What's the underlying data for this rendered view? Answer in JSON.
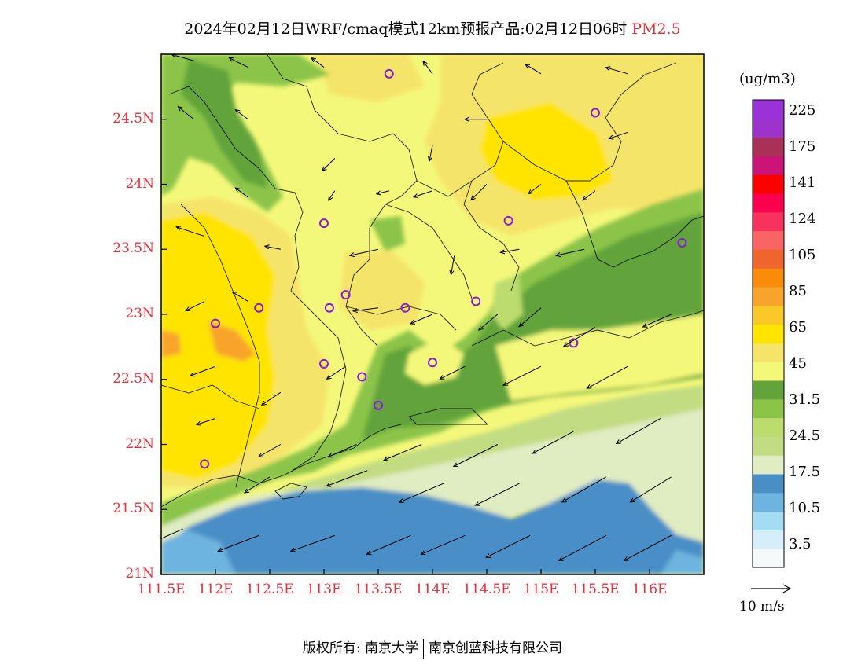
{
  "title": {
    "main": "2024年02月12日WRF/cmaq模式12km预报产品:02月12日06时",
    "pollutant": "PM2.5"
  },
  "y_axis": {
    "ticks": [
      "24.5N",
      "24N",
      "23.5N",
      "23N",
      "22.5N",
      "22N",
      "21.5N",
      "21N"
    ]
  },
  "x_axis": {
    "ticks": [
      "111.5E",
      "112E",
      "112.5E",
      "113E",
      "113.5E",
      "114E",
      "114.5E",
      "115E",
      "115.5E",
      "116E"
    ]
  },
  "legend": {
    "unit": "(ug/m3)",
    "labels": [
      "225",
      "175",
      "141",
      "124",
      "105",
      "85",
      "65",
      "45",
      "31.5",
      "24.5",
      "17.5",
      "10.5",
      "3.5"
    ],
    "colors": [
      "#f5f9f9",
      "#d6eefa",
      "#a4dcf4",
      "#6eb4e0",
      "#4a8ec6",
      "#e0ecc2",
      "#c2dc82",
      "#bcdc6e",
      "#8cc448",
      "#62a43a",
      "#f4f87a",
      "#f5e46a",
      "#ffe400",
      "#fac828",
      "#f8a42c",
      "#fa8c0a",
      "#f0642e",
      "#fa6464",
      "#f8325a",
      "#fc0050",
      "#fc0000",
      "#cc1478",
      "#aa3058",
      "#9c34cc",
      "#9a32d8"
    ]
  },
  "vector_scale": {
    "label": "10 m/s"
  },
  "credit": {
    "owner": "版权所有: 南京大学",
    "partner": "南京创蓝科技有限公司"
  },
  "stations": [
    [
      113.6,
      24.85
    ],
    [
      115.5,
      24.55
    ],
    [
      113.0,
      23.7
    ],
    [
      114.7,
      23.72
    ],
    [
      116.3,
      23.55
    ],
    [
      112.4,
      23.05
    ],
    [
      113.05,
      23.05
    ],
    [
      113.2,
      23.15
    ],
    [
      113.75,
      23.05
    ],
    [
      114.4,
      23.1
    ],
    [
      112.0,
      22.93
    ],
    [
      115.3,
      22.78
    ],
    [
      113.0,
      22.62
    ],
    [
      113.35,
      22.52
    ],
    [
      114.0,
      22.63
    ],
    [
      113.5,
      22.3
    ],
    [
      111.9,
      21.85
    ]
  ],
  "wind": [
    [
      111.8,
      24.95,
      -0.7,
      0.2
    ],
    [
      112.3,
      24.9,
      -0.6,
      0.3
    ],
    [
      113.0,
      24.9,
      -0.4,
      0.3
    ],
    [
      114.0,
      24.85,
      -0.3,
      0.4
    ],
    [
      115.0,
      24.85,
      -0.5,
      0.3
    ],
    [
      115.8,
      24.85,
      -0.7,
      0.2
    ],
    [
      111.8,
      24.5,
      -0.5,
      0.4
    ],
    [
      112.3,
      24.5,
      -0.4,
      0.3
    ],
    [
      113.1,
      24.2,
      -0.4,
      -0.4
    ],
    [
      114.0,
      24.3,
      -0.1,
      -0.5
    ],
    [
      114.5,
      24.5,
      -0.7,
      0.0
    ],
    [
      115.0,
      24.0,
      -0.4,
      -0.3
    ],
    [
      115.8,
      24.4,
      -0.6,
      -0.2
    ],
    [
      112.3,
      23.9,
      -0.4,
      0.3
    ],
    [
      113.1,
      23.95,
      -0.2,
      -0.3
    ],
    [
      113.6,
      23.95,
      -0.4,
      -0.1
    ],
    [
      114.0,
      23.95,
      -0.6,
      -0.2
    ],
    [
      114.5,
      24.0,
      -0.5,
      -0.5
    ],
    [
      115.5,
      23.95,
      -0.4,
      -0.3
    ],
    [
      111.9,
      23.6,
      -0.9,
      0.3
    ],
    [
      112.6,
      23.5,
      -0.5,
      0.1
    ],
    [
      113.5,
      23.5,
      -0.9,
      -0.2
    ],
    [
      114.2,
      23.45,
      -0.1,
      -0.6
    ],
    [
      114.8,
      23.5,
      -0.6,
      -0.1
    ],
    [
      115.4,
      23.5,
      -0.9,
      -0.2
    ],
    [
      111.9,
      23.1,
      -0.6,
      -0.3
    ],
    [
      112.3,
      23.1,
      -0.5,
      0.3
    ],
    [
      113.5,
      23.05,
      -0.8,
      -0.1
    ],
    [
      114.0,
      23.0,
      -0.7,
      -0.3
    ],
    [
      114.6,
      23.0,
      -0.6,
      -0.5
    ],
    [
      115.0,
      23.05,
      -0.7,
      -0.6
    ],
    [
      115.5,
      22.9,
      -1.0,
      -0.6
    ],
    [
      116.2,
      23.0,
      -0.9,
      -0.4
    ],
    [
      112.0,
      22.6,
      -0.8,
      -0.3
    ],
    [
      112.6,
      22.4,
      -0.6,
      -0.4
    ],
    [
      113.2,
      22.6,
      -0.6,
      -0.4
    ],
    [
      114.3,
      22.6,
      -0.8,
      -0.4
    ],
    [
      115.0,
      22.6,
      -1.2,
      -0.6
    ],
    [
      115.8,
      22.6,
      -1.3,
      -0.7
    ],
    [
      112.0,
      22.2,
      -0.6,
      -0.2
    ],
    [
      112.6,
      22.0,
      -0.7,
      -0.4
    ],
    [
      113.3,
      22.0,
      -0.9,
      -0.4
    ],
    [
      113.9,
      22.0,
      -1.2,
      -0.5
    ],
    [
      114.6,
      22.0,
      -1.4,
      -0.7
    ],
    [
      115.3,
      22.1,
      -1.3,
      -0.7
    ],
    [
      116.1,
      22.2,
      -1.4,
      -0.8
    ],
    [
      112.5,
      21.75,
      -0.8,
      -0.5
    ],
    [
      113.4,
      21.8,
      -1.3,
      -0.5
    ],
    [
      114.1,
      21.7,
      -1.4,
      -0.6
    ],
    [
      114.8,
      21.7,
      -1.4,
      -0.7
    ],
    [
      115.6,
      21.75,
      -1.4,
      -0.8
    ],
    [
      116.2,
      21.75,
      -1.3,
      -0.8
    ],
    [
      111.7,
      21.35,
      -0.9,
      -0.4
    ],
    [
      112.4,
      21.3,
      -1.3,
      -0.5
    ],
    [
      113.1,
      21.3,
      -1.4,
      -0.5
    ],
    [
      113.8,
      21.3,
      -1.4,
      -0.6
    ],
    [
      114.3,
      21.3,
      -1.4,
      -0.6
    ],
    [
      114.9,
      21.3,
      -1.4,
      -0.7
    ],
    [
      115.6,
      21.3,
      -1.5,
      -0.8
    ],
    [
      116.2,
      21.3,
      -1.5,
      -0.8
    ]
  ]
}
